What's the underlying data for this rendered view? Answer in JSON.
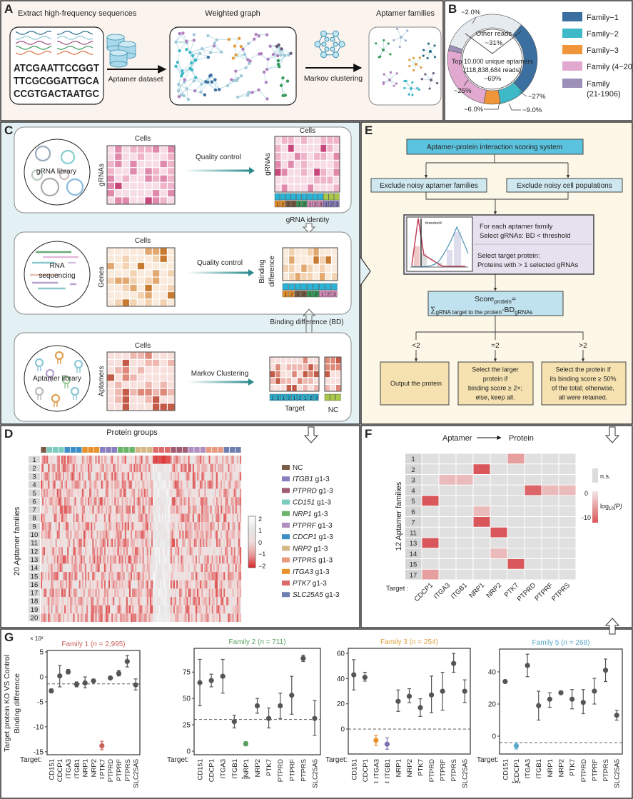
{
  "panel_labels": {
    "a": "A",
    "b": "B",
    "c": "C",
    "d": "D",
    "e": "E",
    "f": "F",
    "g": "G"
  },
  "panel_a": {
    "step1_title": "Extract high-frequency sequences",
    "sequences": [
      "ATCGAATTCCGGT",
      "TTCGCGGATTGCA",
      "CCGTGACTAATGC"
    ],
    "arrow1_label": "Aptamer dataset",
    "graph_title": "Weighted graph",
    "arrow2_label": "Markov clustering",
    "families_title": "Aptamer families"
  },
  "panel_b": {
    "other": {
      "label": "Other reads",
      "pct_label": "~31%",
      "value": 31,
      "color": "#e6ebf0"
    },
    "top_label": "Top 10,000 unique aptamers",
    "reads_label": "(118,838,684 reads)",
    "top_pct": "~69%",
    "slices": [
      {
        "label": "Family−1",
        "label2": "",
        "value": 27,
        "pct_label": "~27%",
        "color": "#3b6fa0"
      },
      {
        "label": "Family−2",
        "label2": "",
        "value": 9,
        "pct_label": "~9.0%",
        "color": "#3fb8c8"
      },
      {
        "label": "Family−3",
        "label2": "",
        "value": 6,
        "pct_label": "~6.0%",
        "color": "#f0953a"
      },
      {
        "label": "Family (4−20)",
        "label2": "",
        "value": 25,
        "pct_label": "~25%",
        "color": "#e1a8d0"
      },
      {
        "label": "Family",
        "label2": "(21-1906)",
        "value": 2,
        "pct_label": "~2.0%",
        "color": "#9c8fb8"
      }
    ]
  },
  "panel_c": {
    "row1": {
      "circle_label": "gRNA library",
      "cells": "Cells",
      "ylabel": "gRNAs",
      "arrow_label": "Quality control",
      "out_cells": "Cells",
      "out_ylabel": "gRNAs",
      "strip": [
        "1",
        "2",
        "1",
        "2",
        "1",
        "2",
        "1",
        "2",
        "3",
        "1",
        "2",
        "3"
      ]
    },
    "link1": "gRNA identity",
    "row2": {
      "circle_label_1": "RNA",
      "circle_label_2": "sequencing",
      "cells": "Cells",
      "ylabel": "Genes",
      "arrow_label": "Quality control",
      "out_ylabel_1": "Binding",
      "out_ylabel_2": "difference",
      "strip": [
        "1",
        "2",
        "1",
        "2",
        "1",
        "2",
        "1",
        "2",
        "3"
      ]
    },
    "link2": "Binding difference (BD)",
    "row3": {
      "circle_label": "Aptamer library",
      "cells": "Cells",
      "ylabel": "Aptamers",
      "arrow_label": "Markov Clustering",
      "strip": [
        "1",
        "2",
        "1",
        "2",
        "1",
        "2",
        "1",
        "2",
        "3"
      ],
      "target_label": "Target",
      "nc_label": "NC"
    }
  },
  "panel_e": {
    "title": "Aptamer-protein interaction scoring system",
    "exclude_left": "Exclude noisy aptamer families",
    "exclude_right": "Exclude noisy cell populations",
    "threshold_label": "threshold",
    "select_lines": [
      "For each aptamer family",
      "Select gRNAs: BD < threshold"
    ],
    "target_lines": [
      "Select target protein:",
      "Proteins with > 1 selected gRNAs"
    ],
    "score": {
      "word": "Score",
      "sub1": "protein",
      "eq": "=",
      "sigma": "∑",
      "sub2": "gRNA target to the protein",
      "bd": "-BD",
      "sub3": "gRNAs"
    },
    "branches": [
      {
        "cond": "<2",
        "lines": [
          "Output the protein"
        ]
      },
      {
        "cond": "=2",
        "lines": [
          "Select the larger",
          "protein  if",
          "binding score ≥ 2×;",
          "else, keep all."
        ]
      },
      {
        "cond": ">2",
        "lines": [
          "Select the protein if",
          "its binding score ≥ 50%",
          "of the total; otherwise,",
          "all were retained."
        ]
      }
    ]
  },
  "panel_d": {
    "title": "Protein groups",
    "ylabel": "20 Aptamer families",
    "rows": [
      "1",
      "2",
      "3",
      "4",
      "5",
      "6",
      "7",
      "8",
      "9",
      "10",
      "11",
      "12",
      "13",
      "14",
      "15",
      "16",
      "17",
      "18",
      "19",
      "20"
    ],
    "colorbar_ticks": [
      "2",
      "1",
      "0",
      "−1",
      "−2"
    ],
    "group_order": [
      "NC",
      "CD151",
      "CDCP1",
      "ITGA3",
      "ITGB1",
      "NRP1",
      "NRP2",
      "PTK7",
      "PTPRD",
      "PTPRF",
      "PTPRS",
      "SLC25A5"
    ],
    "legend": [
      {
        "gene": "NC",
        "suffix": "",
        "color": "#7a5c45"
      },
      {
        "gene": "ITGB1",
        "suffix": " g1-3",
        "color": "#8a7fc0"
      },
      {
        "gene": "PTPRD",
        "suffix": " g1-3",
        "color": "#a05a72"
      },
      {
        "gene": "CD151",
        "suffix": " g1-3",
        "color": "#7ccbbd"
      },
      {
        "gene": "NRP1",
        "suffix": " g1-3",
        "color": "#6bb56b"
      },
      {
        "gene": "PTPRF",
        "suffix": " g1-3",
        "color": "#b08fc0"
      },
      {
        "gene": "CDCP1",
        "suffix": " g1-3",
        "color": "#3b8fc6"
      },
      {
        "gene": "NRP2",
        "suffix": " g1-3",
        "color": "#d4b888"
      },
      {
        "gene": "PTPRS",
        "suffix": " g1-3",
        "color": "#e89a80"
      },
      {
        "gene": "ITGA3",
        "suffix": " g1-3",
        "color": "#e8902a"
      },
      {
        "gene": "PTK7",
        "suffix": " g1-3",
        "color": "#de6b6b"
      },
      {
        "gene": "SLC25A5",
        "suffix": " g1-3",
        "color": "#6e7fb0"
      }
    ]
  },
  "panel_f": {
    "title_left": "Aptamer",
    "title_right": "Protein",
    "ylabel": "12 Aptamer families",
    "target_label": "Target :",
    "rows": [
      "1",
      "2",
      "3",
      "4",
      "5",
      "6",
      "7",
      "11",
      "13",
      "14",
      "15",
      "17"
    ],
    "cols": [
      "CDCP1",
      "ITGA3",
      "ITGB1",
      "NRP1",
      "NRP2",
      "PTK7",
      "PTPRD",
      "PTPRF",
      "PTPRS"
    ],
    "significant": [
      {
        "row": "1",
        "col": "PTK7",
        "log10p": -5
      },
      {
        "row": "2",
        "col": "NRP1",
        "log10p": -10
      },
      {
        "row": "3",
        "col": "ITGA3",
        "log10p": -3
      },
      {
        "row": "3",
        "col": "ITGB1",
        "log10p": -3
      },
      {
        "row": "4",
        "col": "PTPRD",
        "log10p": -9
      },
      {
        "row": "4",
        "col": "PTPRF",
        "log10p": -3
      },
      {
        "row": "4",
        "col": "PTPRS",
        "log10p": -3
      },
      {
        "row": "5",
        "col": "CDCP1",
        "log10p": -10
      },
      {
        "row": "6",
        "col": "NRP1",
        "log10p": -3
      },
      {
        "row": "7",
        "col": "NRP1",
        "log10p": -10
      },
      {
        "row": "11",
        "col": "NRP2",
        "log10p": -10
      },
      {
        "row": "13",
        "col": "CDCP1",
        "log10p": -10
      },
      {
        "row": "14",
        "col": "NRP2",
        "log10p": -3
      },
      {
        "row": "15",
        "col": "PTK7",
        "log10p": -10
      },
      {
        "row": "17",
        "col": "CDCP1",
        "log10p": -5
      }
    ],
    "legend": {
      "ns": "n.s.",
      "zero": "0",
      "min": "-10",
      "log_label": "log",
      "log_sub": "10",
      "log_arg": "(P)"
    }
  },
  "panel_g": {
    "ylabel_1": "Target protein KO VS Control",
    "ylabel_2": "Binding  difference",
    "scale_label": "× 10²",
    "target_label": "Target:",
    "families": [
      {
        "name": "Family 1 (",
        "n": "n",
        "count": " = 2,995)",
        "color": "#c9605a",
        "ylim": [
          -15.6,
          5.3
        ],
        "yticks": [
          "5",
          "0",
          "-5",
          "-10",
          "-15"
        ],
        "ytick_values": [
          5,
          0,
          -5,
          -10,
          -15
        ],
        "baseline": -1.4,
        "points": [
          {
            "target": "CD151",
            "mean": -2.8,
            "lo": -3.2,
            "hi": -2.4,
            "sig": ""
          },
          {
            "target": "CDCP1",
            "mean": 0.2,
            "lo": -2.0,
            "hi": 2.3,
            "sig": ""
          },
          {
            "target": "ITGA3",
            "mean": 1.0,
            "lo": 0.6,
            "hi": 1.5,
            "sig": ""
          },
          {
            "target": "ITGB1",
            "mean": -1.5,
            "lo": -2.0,
            "hi": -1.0,
            "sig": ""
          },
          {
            "target": "NRP1",
            "mean": -1.2,
            "lo": -2.2,
            "hi": 0.0,
            "sig": ""
          },
          {
            "target": "NRP2",
            "mean": -0.8,
            "lo": -1.1,
            "hi": -0.5,
            "sig": ""
          },
          {
            "target": "PTK7",
            "mean": -13.8,
            "lo": -14.6,
            "hi": -12.9,
            "sig": "**"
          },
          {
            "target": "PTPRD",
            "mean": -0.2,
            "lo": -0.4,
            "hi": 0.0,
            "sig": ""
          },
          {
            "target": "PTPRF",
            "mean": 0.7,
            "lo": 0.2,
            "hi": 1.3,
            "sig": ""
          },
          {
            "target": "PTPRS",
            "mean": 3.1,
            "lo": 2.0,
            "hi": 4.3,
            "sig": ""
          },
          {
            "target": "SLC25A5",
            "mean": -1.6,
            "lo": -2.6,
            "hi": -0.4,
            "sig": ""
          }
        ]
      },
      {
        "name": "Family 2 (",
        "n": "n",
        "count": " = 711)",
        "color": "#5aa060",
        "ylim": [
          -3.4,
          97.5
        ],
        "yticks": [
          "75",
          "50",
          "25",
          "0"
        ],
        "ytick_values": [
          75,
          50,
          25,
          0
        ],
        "baseline": 30,
        "points": [
          {
            "target": "CD151",
            "mean": 65,
            "lo": 43,
            "hi": 87,
            "sig": ""
          },
          {
            "target": "CDCP1",
            "mean": 67,
            "lo": 61,
            "hi": 73,
            "sig": ""
          },
          {
            "target": "ITGA3",
            "mean": 71,
            "lo": 55,
            "hi": 87,
            "sig": ""
          },
          {
            "target": "ITGB1",
            "mean": 28,
            "lo": 22,
            "hi": 34,
            "sig": ""
          },
          {
            "target": "NRP1",
            "mean": 7,
            "lo": 5,
            "hi": 9,
            "sig": "****"
          },
          {
            "target": "NRP2",
            "mean": 43,
            "lo": 36,
            "hi": 50,
            "sig": ""
          },
          {
            "target": "PTK7",
            "mean": 31,
            "lo": 22,
            "hi": 41,
            "sig": ""
          },
          {
            "target": "PTPRD",
            "mean": 43,
            "lo": 31,
            "hi": 55,
            "sig": ""
          },
          {
            "target": "PTPRF",
            "mean": 53,
            "lo": 35,
            "hi": 71,
            "sig": ""
          },
          {
            "target": "PTPRS",
            "mean": 88,
            "lo": 85,
            "hi": 91,
            "sig": ""
          },
          {
            "target": "SLC25A5",
            "mean": 31,
            "lo": 15,
            "hi": 48,
            "sig": ""
          }
        ]
      },
      {
        "name": "Family 3 (",
        "n": "n",
        "count": " = 254)",
        "color": "#e0a040",
        "ylim": [
          -19.8,
          64
        ],
        "yticks": [
          "60",
          "40",
          "20",
          "0"
        ],
        "ytick_values": [
          60,
          40,
          20,
          0
        ],
        "baseline": 0,
        "points": [
          {
            "target": "CD151",
            "mean": 43,
            "lo": 31,
            "hi": 55,
            "sig": ""
          },
          {
            "target": "CDCP1",
            "mean": 41,
            "lo": 38,
            "hi": 45,
            "sig": ""
          },
          {
            "target": "ITGA3",
            "mean": -9,
            "lo": -13,
            "hi": -5,
            "sig": "**",
            "hcolor": "#e8902a"
          },
          {
            "target": "ITGB1",
            "mean": -12,
            "lo": -16,
            "hi": -7,
            "sig": "**",
            "hcolor": "#7a72b0"
          },
          {
            "target": "NRP1",
            "mean": 22,
            "lo": 14,
            "hi": 31,
            "sig": ""
          },
          {
            "target": "NRP2",
            "mean": 26,
            "lo": 21,
            "hi": 32,
            "sig": ""
          },
          {
            "target": "PTK7",
            "mean": 17,
            "lo": 10,
            "hi": 24,
            "sig": ""
          },
          {
            "target": "PTPRD",
            "mean": 27,
            "lo": 13,
            "hi": 42,
            "sig": ""
          },
          {
            "target": "PTPRF",
            "mean": 30,
            "lo": 15,
            "hi": 45,
            "sig": ""
          },
          {
            "target": "PTPRS",
            "mean": 52,
            "lo": 45,
            "hi": 60,
            "sig": ""
          },
          {
            "target": "SLC25A5",
            "mean": 30,
            "lo": 21,
            "hi": 39,
            "sig": ""
          }
        ]
      },
      {
        "name": "Family 5 (",
        "n": "n",
        "count": " = 268)",
        "color": "#5aa8c8",
        "ylim": [
          -11.1,
          54.2
        ],
        "yticks": [
          "40",
          "20",
          "0"
        ],
        "ytick_values": [
          40,
          20,
          0
        ],
        "baseline": -4,
        "points": [
          {
            "target": "CD151",
            "mean": 34,
            "lo": 34,
            "hi": 34,
            "sig": ""
          },
          {
            "target": "CDCP1",
            "mean": -6,
            "lo": -8,
            "hi": -4,
            "sig": "****"
          },
          {
            "target": "ITGA3",
            "mean": 44,
            "lo": 37,
            "hi": 51,
            "sig": ""
          },
          {
            "target": "ITGB1",
            "mean": 19,
            "lo": 10,
            "hi": 28,
            "sig": ""
          },
          {
            "target": "NRP1",
            "mean": 23,
            "lo": 18,
            "hi": 27,
            "sig": ""
          },
          {
            "target": "NRP2",
            "mean": 27,
            "lo": 27,
            "hi": 27,
            "sig": ""
          },
          {
            "target": "PTK7",
            "mean": 23,
            "lo": 17,
            "hi": 29,
            "sig": ""
          },
          {
            "target": "PTPRD",
            "mean": 21,
            "lo": 14,
            "hi": 29,
            "sig": ""
          },
          {
            "target": "PTPRF",
            "mean": 28,
            "lo": 20,
            "hi": 36,
            "sig": ""
          },
          {
            "target": "PTPRS",
            "mean": 41,
            "lo": 34,
            "hi": 48,
            "sig": ""
          },
          {
            "target": "SLC25A5",
            "mean": 13,
            "lo": 10,
            "hi": 16,
            "sig": ""
          }
        ]
      }
    ]
  }
}
